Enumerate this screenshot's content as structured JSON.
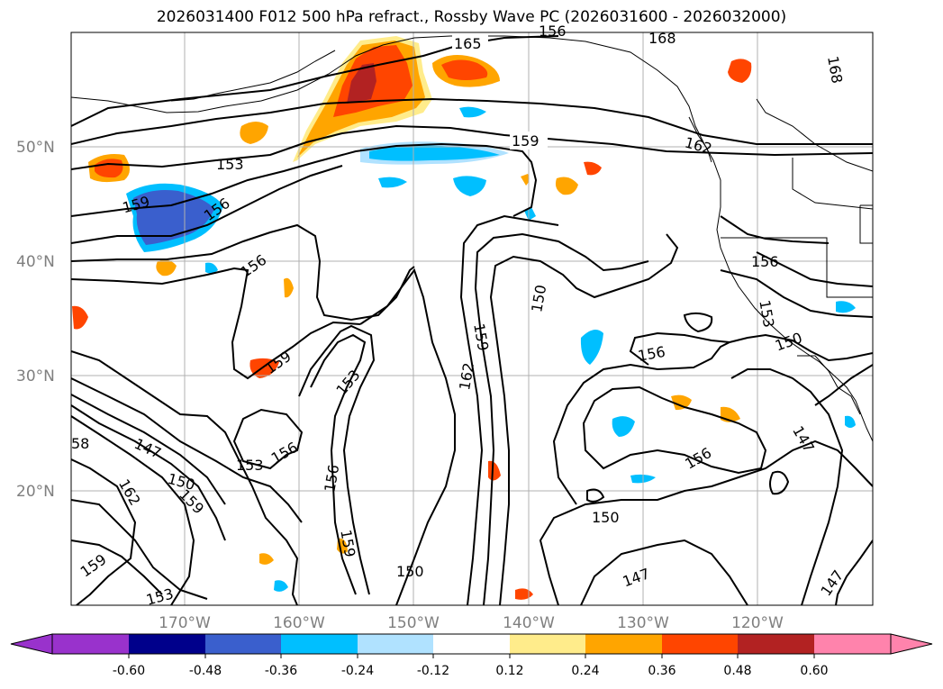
{
  "title": "2026031400 F012 500 hPa refract., Rossby Wave PC (2026031600 - 2026032000)",
  "lat_labels": [
    "50°N",
    "40°N",
    "30°N",
    "20°N"
  ],
  "lon_labels": [
    "170°W",
    "160°W",
    "150°W",
    "140°W",
    "130°W",
    "120°W"
  ],
  "colorbar": {
    "ticks": [
      "-0.60",
      "-0.48",
      "-0.36",
      "-0.24",
      "-0.12",
      "0.12",
      "0.24",
      "0.36",
      "0.48",
      "0.60"
    ],
    "colors": [
      "#9932cc",
      "#00008b",
      "#3a5fcd",
      "#00bfff",
      "#b0e2ff",
      "#ffffff",
      "#ffec8b",
      "#ffa500",
      "#ff4500",
      "#b22222",
      "#ff83ac"
    ]
  },
  "contour_labels": [
    "165",
    "168",
    "168",
    "159",
    "162",
    "159",
    "156",
    "156",
    "156",
    "159",
    "153",
    "156",
    "153",
    "147",
    "150",
    "162",
    "159",
    "58",
    "150",
    "159",
    "162",
    "156",
    "153",
    "150",
    "156",
    "150",
    "147",
    "147",
    "156",
    "147",
    "159",
    "153",
    "159",
    "156",
    "153",
    "150"
  ],
  "fill_colors": {
    "orange": "#ffa500",
    "red": "#ff4500",
    "darkred": "#b22222",
    "yellow": "#ffec8b",
    "cyan": "#00bfff",
    "lightblue": "#b0e2ff",
    "blue": "#3a5fcd"
  }
}
